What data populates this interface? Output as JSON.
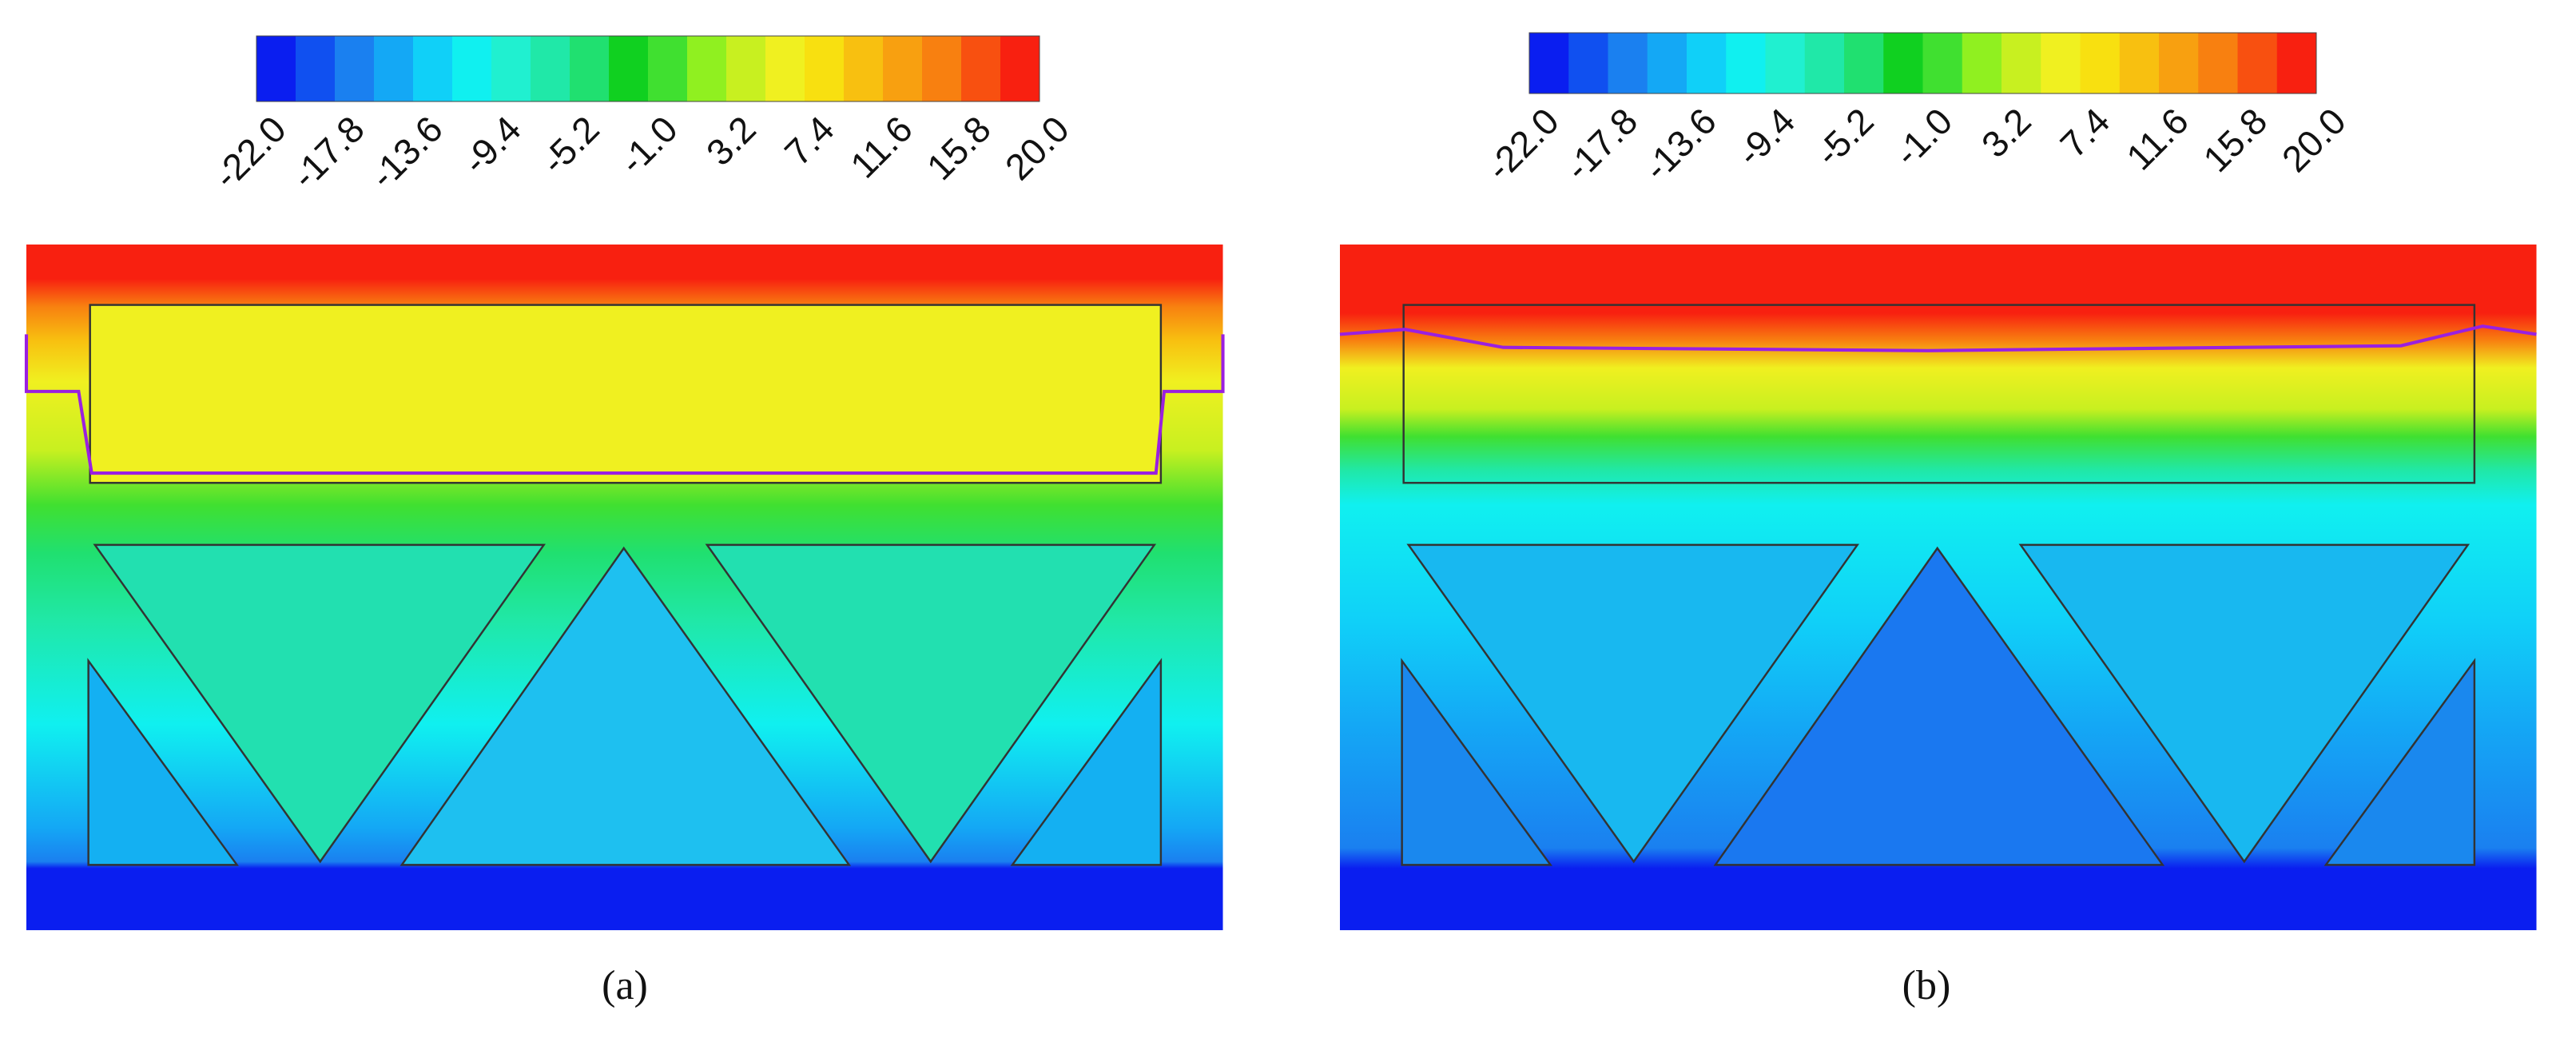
{
  "colorbar_colors": [
    "#0a1ef0",
    "#1050f0",
    "#1a80f0",
    "#14a8f5",
    "#10d0f8",
    "#10f0f0",
    "#20f0d0",
    "#20e8a8",
    "#20e070",
    "#10d020",
    "#40e030",
    "#90f020",
    "#c8f020",
    "#f0f020",
    "#f8e010",
    "#f8c010",
    "#f8a010",
    "#f88010",
    "#f85010",
    "#f82010"
  ],
  "panels": [
    {
      "colorbar": {
        "labels": [
          "-22.0",
          "-17.8",
          "-13.6",
          "-9.4",
          "-5.2",
          "-1.0",
          "3.2",
          "7.4",
          "11.6",
          "15.8",
          "20.0"
        ]
      },
      "caption": "(a)"
    },
    {
      "colorbar": {
        "labels": [
          "-22.0",
          "-17.8",
          "-13.6",
          "-9.4",
          "-5.2",
          "-1.0",
          "3.2",
          "7.4",
          "11.6",
          "15.8",
          "20.0"
        ]
      },
      "caption": "(b)"
    }
  ]
}
